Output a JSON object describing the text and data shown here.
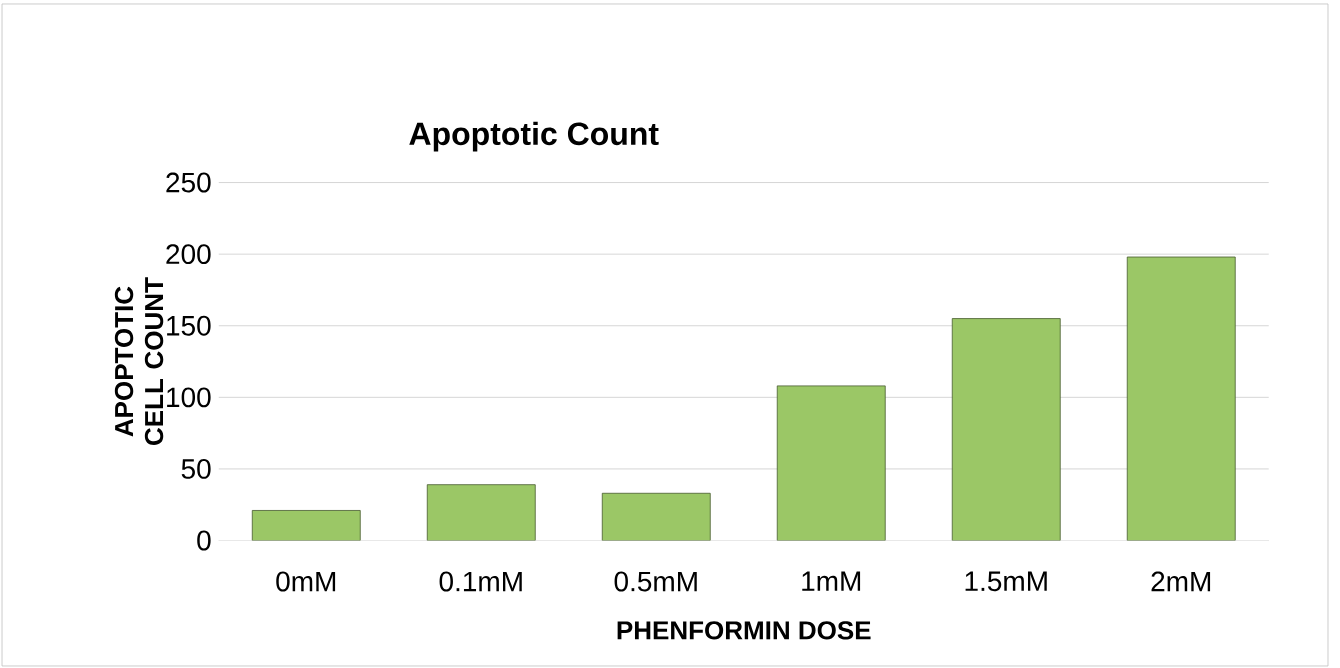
{
  "chart_data": {
    "type": "bar",
    "title": "Apoptotic Count",
    "xlabel": "PHENFORMIN DOSE",
    "ylabel": "APOPTOTIC CELL COUNT",
    "categories": [
      "0mM",
      "0.1mM",
      "0.5mM",
      "1mM",
      "1.5mM",
      "2mM"
    ],
    "values": [
      21,
      39,
      33,
      108,
      155,
      198
    ],
    "color": "#9bc766",
    "ylim": [
      0,
      250
    ],
    "yticks": [
      0,
      50,
      100,
      150,
      200,
      250
    ],
    "grid": "y"
  }
}
